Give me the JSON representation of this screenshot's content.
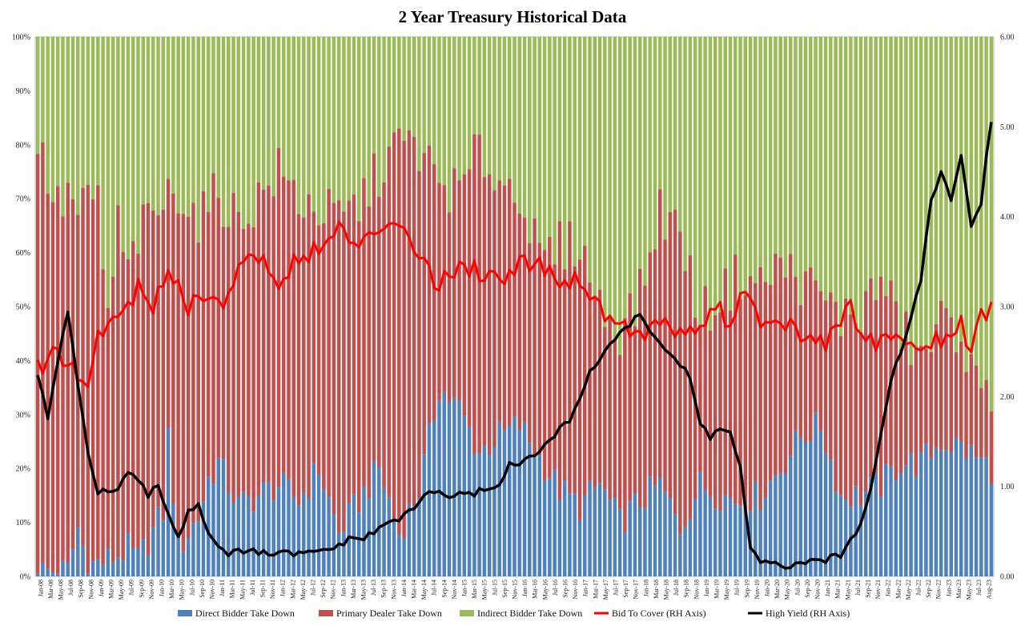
{
  "chart_data": {
    "type": "bar",
    "stacked_percent": true,
    "title": "2 Year Treasury Historical Data",
    "y_left": {
      "range": [
        0,
        100
      ],
      "ticks": [
        "0%",
        "10%",
        "20%",
        "30%",
        "40%",
        "50%",
        "60%",
        "70%",
        "80%",
        "90%",
        "100%"
      ]
    },
    "y_right": {
      "range": [
        0,
        6
      ],
      "ticks": [
        "0.00",
        "1.00",
        "2.00",
        "3.00",
        "4.00",
        "5.00",
        "6.00"
      ]
    },
    "grid": false,
    "legend_position": "bottom",
    "x_tick_labels": [
      "Jan-08",
      "Mar-08",
      "May-08",
      "Jul-08",
      "Sep-08",
      "Nov-08",
      "Jan-09",
      "Mar-09",
      "May-09",
      "Jul-09",
      "Sep-09",
      "Nov-09",
      "Jan-10",
      "Mar-10",
      "May-10",
      "Jul-10",
      "Sep-10",
      "Nov-10",
      "Jan-11",
      "Mar-11",
      "May-11",
      "Jul-11",
      "Sep-11",
      "Nov-11",
      "Jan-12",
      "Mar-12",
      "May-12",
      "Jul-12",
      "Sep-12",
      "Nov-12",
      "Jan-13",
      "Mar-13",
      "May-13",
      "Jul-13",
      "Sep-13",
      "Nov-13",
      "Jan-14",
      "Mar-14",
      "May-14",
      "Jul-14",
      "Sep-14",
      "Nov-14",
      "Jan-15",
      "Mar-15",
      "May-15",
      "Jul-15",
      "Sep-15",
      "Nov-15",
      "Jan-16",
      "Mar-16",
      "May-16",
      "Jul-16",
      "Sep-16",
      "Nov-16",
      "Jan-17",
      "Mar-17",
      "May-17",
      "Jul-17",
      "Sep-17",
      "Nov-17",
      "Jan-18",
      "Mar-18",
      "May-18",
      "Jul-18",
      "Sep-18",
      "Nov-18",
      "Jan-19",
      "Mar-19",
      "May-19",
      "Jul-19",
      "Sep-19",
      "Nov-19",
      "Jan-20",
      "Mar-20",
      "May-20",
      "Jul-20",
      "Sep-20",
      "Nov-20",
      "Jan-21",
      "Mar-21",
      "May-21",
      "Jul-21",
      "Sep-21",
      "Nov-21",
      "Jan-22",
      "Mar-22",
      "May-22",
      "Jul-22",
      "Sep-22",
      "Nov-22",
      "Jan-23",
      "Mar-23",
      "May-23",
      "Jul-23",
      "Aug-23"
    ],
    "series": [
      {
        "name": "Direct Bidder Take Down",
        "color": "#4f81bd",
        "axis": "left",
        "kind": "stacked-bar",
        "anchors": [
          [
            0,
            1
          ],
          [
            6,
            1
          ],
          [
            8,
            9
          ],
          [
            10,
            2
          ],
          [
            14,
            3
          ],
          [
            18,
            5
          ],
          [
            20,
            3
          ],
          [
            25,
            12
          ],
          [
            26,
            26
          ],
          [
            28,
            5
          ],
          [
            32,
            11
          ],
          [
            34,
            18
          ],
          [
            36,
            21
          ],
          [
            40,
            13
          ],
          [
            44,
            15
          ],
          [
            48,
            17
          ],
          [
            52,
            14
          ],
          [
            56,
            20
          ],
          [
            60,
            8
          ],
          [
            64,
            14
          ],
          [
            68,
            20
          ],
          [
            72,
            8
          ],
          [
            76,
            16
          ],
          [
            80,
            35
          ],
          [
            84,
            31
          ],
          [
            88,
            23
          ],
          [
            92,
            26
          ],
          [
            96,
            28
          ],
          [
            100,
            22
          ],
          [
            104,
            16
          ],
          [
            108,
            13
          ],
          [
            112,
            17
          ],
          [
            116,
            10
          ],
          [
            120,
            14
          ],
          [
            124,
            17
          ],
          [
            128,
            9
          ],
          [
            132,
            17
          ],
          [
            136,
            15
          ],
          [
            140,
            14
          ],
          [
            144,
            15
          ],
          [
            148,
            20
          ],
          [
            152,
            26
          ],
          [
            156,
            28
          ],
          [
            160,
            15
          ],
          [
            164,
            15
          ],
          [
            168,
            17
          ],
          [
            172,
            21
          ],
          [
            176,
            21
          ],
          [
            180,
            25
          ],
          [
            184,
            24
          ],
          [
            190,
            20
          ]
        ]
      },
      {
        "name": "Primary Dealer Take Down",
        "color": "#c0504d",
        "axis": "left",
        "kind": "stacked-bar",
        "top_anchors": [
          [
            0,
            80
          ],
          [
            2,
            74
          ],
          [
            4,
            68
          ],
          [
            6,
            71
          ],
          [
            8,
            67
          ],
          [
            10,
            69
          ],
          [
            12,
            70
          ],
          [
            14,
            47
          ],
          [
            16,
            65
          ],
          [
            18,
            56
          ],
          [
            20,
            63
          ],
          [
            24,
            68
          ],
          [
            28,
            72
          ],
          [
            32,
            66
          ],
          [
            36,
            71
          ],
          [
            40,
            66
          ],
          [
            44,
            70
          ],
          [
            48,
            75
          ],
          [
            52,
            70
          ],
          [
            56,
            68
          ],
          [
            60,
            66
          ],
          [
            64,
            69
          ],
          [
            68,
            75
          ],
          [
            72,
            81
          ],
          [
            76,
            79
          ],
          [
            80,
            73
          ],
          [
            84,
            71
          ],
          [
            88,
            79
          ],
          [
            92,
            73
          ],
          [
            96,
            72
          ],
          [
            100,
            58
          ],
          [
            104,
            61
          ],
          [
            108,
            62
          ],
          [
            112,
            50
          ],
          [
            116,
            46
          ],
          [
            120,
            52
          ],
          [
            124,
            68
          ],
          [
            128,
            64
          ],
          [
            132,
            48
          ],
          [
            136,
            52
          ],
          [
            140,
            56
          ],
          [
            144,
            54
          ],
          [
            148,
            58
          ],
          [
            152,
            55
          ],
          [
            156,
            52
          ],
          [
            160,
            48
          ],
          [
            164,
            49
          ],
          [
            168,
            55
          ],
          [
            172,
            46
          ],
          [
            176,
            40
          ],
          [
            180,
            47
          ],
          [
            184,
            46
          ],
          [
            186,
            38
          ],
          [
            188,
            32
          ],
          [
            190,
            35
          ]
        ]
      },
      {
        "name": "Indirect Bidder Take Down",
        "color": "#9bbb59",
        "axis": "left",
        "kind": "stacked-bar"
      },
      {
        "name": "Bid To Cover (RH Axis)",
        "color": "#ff0000",
        "axis": "right",
        "kind": "line",
        "anchors": [
          [
            0,
            2.3
          ],
          [
            3,
            2.5
          ],
          [
            6,
            2.4
          ],
          [
            8,
            2.2
          ],
          [
            10,
            2.1
          ],
          [
            12,
            2.7
          ],
          [
            16,
            2.9
          ],
          [
            20,
            3.2
          ],
          [
            23,
            2.9
          ],
          [
            26,
            3.5
          ],
          [
            30,
            3.0
          ],
          [
            34,
            3.2
          ],
          [
            36,
            3.0
          ],
          [
            40,
            3.4
          ],
          [
            44,
            3.6
          ],
          [
            48,
            3.2
          ],
          [
            52,
            3.6
          ],
          [
            56,
            3.6
          ],
          [
            60,
            3.9
          ],
          [
            64,
            3.6
          ],
          [
            68,
            3.9
          ],
          [
            72,
            4.0
          ],
          [
            76,
            3.6
          ],
          [
            80,
            3.2
          ],
          [
            84,
            3.5
          ],
          [
            88,
            3.4
          ],
          [
            92,
            3.3
          ],
          [
            96,
            3.5
          ],
          [
            100,
            3.5
          ],
          [
            104,
            3.3
          ],
          [
            108,
            3.3
          ],
          [
            112,
            3.0
          ],
          [
            116,
            2.8
          ],
          [
            120,
            2.7
          ],
          [
            124,
            2.8
          ],
          [
            128,
            2.7
          ],
          [
            132,
            2.8
          ],
          [
            136,
            3.0
          ],
          [
            138,
            2.7
          ],
          [
            140,
            3.2
          ],
          [
            144,
            2.8
          ],
          [
            148,
            2.9
          ],
          [
            152,
            2.6
          ],
          [
            156,
            2.6
          ],
          [
            160,
            2.7
          ],
          [
            162,
            3.1
          ],
          [
            164,
            2.6
          ],
          [
            168,
            2.6
          ],
          [
            172,
            2.6
          ],
          [
            176,
            2.6
          ],
          [
            180,
            2.6
          ],
          [
            184,
            2.8
          ],
          [
            186,
            2.5
          ],
          [
            188,
            2.9
          ],
          [
            190,
            2.95
          ]
        ]
      },
      {
        "name": "High Yield (RH Axis)",
        "color": "#000000",
        "axis": "right",
        "kind": "line",
        "anchors": [
          [
            0,
            2.25
          ],
          [
            2,
            1.75
          ],
          [
            4,
            2.4
          ],
          [
            6,
            2.92
          ],
          [
            8,
            2.1
          ],
          [
            10,
            1.4
          ],
          [
            12,
            0.95
          ],
          [
            14,
            0.95
          ],
          [
            16,
            0.95
          ],
          [
            18,
            1.15
          ],
          [
            20,
            1.05
          ],
          [
            22,
            0.9
          ],
          [
            24,
            1.0
          ],
          [
            26,
            0.7
          ],
          [
            28,
            0.45
          ],
          [
            30,
            0.72
          ],
          [
            32,
            0.8
          ],
          [
            34,
            0.5
          ],
          [
            36,
            0.35
          ],
          [
            38,
            0.25
          ],
          [
            42,
            0.28
          ],
          [
            46,
            0.25
          ],
          [
            50,
            0.25
          ],
          [
            54,
            0.25
          ],
          [
            58,
            0.3
          ],
          [
            62,
            0.4
          ],
          [
            66,
            0.45
          ],
          [
            70,
            0.6
          ],
          [
            74,
            0.7
          ],
          [
            78,
            0.95
          ],
          [
            82,
            0.9
          ],
          [
            86,
            0.9
          ],
          [
            90,
            1.0
          ],
          [
            92,
            1.0
          ],
          [
            94,
            1.25
          ],
          [
            98,
            1.3
          ],
          [
            102,
            1.5
          ],
          [
            106,
            1.75
          ],
          [
            108,
            2.0
          ],
          [
            110,
            2.25
          ],
          [
            114,
            2.6
          ],
          [
            116,
            2.7
          ],
          [
            120,
            2.9
          ],
          [
            124,
            2.6
          ],
          [
            128,
            2.35
          ],
          [
            130,
            2.2
          ],
          [
            132,
            1.7
          ],
          [
            134,
            1.55
          ],
          [
            136,
            1.65
          ],
          [
            138,
            1.6
          ],
          [
            140,
            1.2
          ],
          [
            142,
            0.3
          ],
          [
            144,
            0.15
          ],
          [
            148,
            0.12
          ],
          [
            152,
            0.12
          ],
          [
            156,
            0.18
          ],
          [
            160,
            0.22
          ],
          [
            164,
            0.6
          ],
          [
            166,
            1.0
          ],
          [
            168,
            1.6
          ],
          [
            170,
            2.2
          ],
          [
            172,
            2.5
          ],
          [
            174,
            2.9
          ],
          [
            176,
            3.3
          ],
          [
            178,
            4.2
          ],
          [
            180,
            4.5
          ],
          [
            182,
            4.15
          ],
          [
            184,
            4.7
          ],
          [
            186,
            3.9
          ],
          [
            188,
            4.1
          ],
          [
            189,
            4.7
          ],
          [
            190,
            5.05
          ]
        ]
      }
    ],
    "bar_count": 191
  }
}
